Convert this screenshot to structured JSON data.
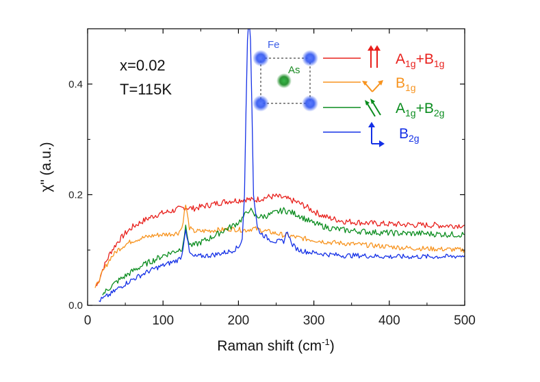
{
  "chart_data": {
    "type": "line",
    "xlabel": "Raman shift (cm",
    "xlabel_sup": "-1",
    "xlabel_end": ")",
    "ylabel": "χ\" (a.u.)",
    "xlim": [
      0,
      500
    ],
    "ylim": [
      0,
      0.5
    ],
    "x_ticks": [
      0,
      100,
      200,
      300,
      400,
      500
    ],
    "y_ticks": [
      0.0,
      0.2,
      0.4
    ],
    "y_tick_labels": [
      "0.0",
      "0.2",
      "0.4"
    ],
    "x_tick_labels": [
      "0",
      "100",
      "200",
      "300",
      "400",
      "500"
    ],
    "annotations": [
      "x=0.02",
      "T=115K"
    ],
    "inset": {
      "fe_label": "Fe",
      "as_label": "As"
    },
    "legend_position": "top-right",
    "series": [
      {
        "name": "A1g+B1g",
        "label_main": "A",
        "label_sub1": "1g",
        "label_mid": "+B",
        "label_sub2": "1g",
        "color": "#e8201c",
        "x": [
          12,
          20,
          30,
          40,
          50,
          60,
          70,
          80,
          90,
          100,
          110,
          120,
          130,
          140,
          150,
          160,
          170,
          180,
          190,
          200,
          210,
          220,
          230,
          240,
          250,
          260,
          270,
          280,
          290,
          300,
          310,
          320,
          330,
          340,
          360,
          380,
          400,
          420,
          440,
          460,
          480,
          500
        ],
        "values": [
          0.035,
          0.065,
          0.095,
          0.115,
          0.13,
          0.142,
          0.15,
          0.157,
          0.163,
          0.167,
          0.17,
          0.174,
          0.177,
          0.175,
          0.178,
          0.181,
          0.184,
          0.187,
          0.189,
          0.19,
          0.192,
          0.19,
          0.193,
          0.196,
          0.197,
          0.194,
          0.19,
          0.185,
          0.178,
          0.17,
          0.163,
          0.158,
          0.155,
          0.152,
          0.15,
          0.148,
          0.147,
          0.146,
          0.145,
          0.145,
          0.144,
          0.145
        ]
      },
      {
        "name": "B1g",
        "label_main": "B",
        "label_sub1": "1g",
        "label_mid": "",
        "label_sub2": "",
        "color": "#f7931e",
        "x": [
          10,
          20,
          30,
          40,
          50,
          60,
          70,
          80,
          90,
          100,
          110,
          120,
          125,
          130,
          135,
          140,
          150,
          160,
          170,
          180,
          190,
          200,
          210,
          220,
          230,
          240,
          250,
          260,
          270,
          280,
          290,
          300,
          310,
          320,
          340,
          360,
          380,
          400,
          420,
          440,
          460,
          480,
          500
        ],
        "values": [
          0.03,
          0.06,
          0.085,
          0.1,
          0.11,
          0.117,
          0.121,
          0.124,
          0.127,
          0.128,
          0.129,
          0.131,
          0.14,
          0.182,
          0.14,
          0.134,
          0.134,
          0.135,
          0.136,
          0.137,
          0.138,
          0.137,
          0.136,
          0.139,
          0.136,
          0.133,
          0.13,
          0.127,
          0.125,
          0.122,
          0.12,
          0.118,
          0.116,
          0.114,
          0.112,
          0.11,
          0.108,
          0.106,
          0.104,
          0.103,
          0.102,
          0.101,
          0.1
        ]
      },
      {
        "name": "A1g+B2g",
        "label_main": "A",
        "label_sub1": "1g",
        "label_mid": "+B",
        "label_sub2": "2g",
        "color": "#0a8c1e",
        "x": [
          20,
          30,
          40,
          50,
          60,
          70,
          80,
          90,
          100,
          110,
          120,
          125,
          130,
          135,
          140,
          150,
          160,
          170,
          180,
          190,
          200,
          205,
          210,
          215,
          220,
          230,
          240,
          250,
          260,
          270,
          280,
          290,
          300,
          320,
          340,
          360,
          380,
          400,
          420,
          440,
          460,
          480,
          500
        ],
        "values": [
          0.02,
          0.033,
          0.044,
          0.053,
          0.062,
          0.07,
          0.077,
          0.083,
          0.09,
          0.095,
          0.1,
          0.103,
          0.14,
          0.11,
          0.108,
          0.114,
          0.12,
          0.127,
          0.135,
          0.142,
          0.15,
          0.157,
          0.165,
          0.175,
          0.163,
          0.16,
          0.163,
          0.168,
          0.172,
          0.168,
          0.163,
          0.155,
          0.148,
          0.14,
          0.136,
          0.134,
          0.132,
          0.131,
          0.13,
          0.13,
          0.129,
          0.128,
          0.128
        ]
      },
      {
        "name": "B2g",
        "label_main": "B",
        "label_sub1": "2g",
        "label_mid": "",
        "label_sub2": "",
        "color": "#1430e6",
        "x": [
          15,
          20,
          30,
          40,
          50,
          60,
          70,
          80,
          90,
          100,
          110,
          120,
          125,
          130,
          135,
          140,
          150,
          160,
          170,
          180,
          190,
          200,
          205,
          208,
          210,
          212,
          214,
          216,
          218,
          220,
          225,
          230,
          240,
          250,
          260,
          265,
          270,
          275,
          280,
          290,
          300,
          320,
          340,
          360,
          380,
          400,
          420,
          440,
          460,
          480,
          500
        ],
        "values": [
          0.008,
          0.012,
          0.02,
          0.03,
          0.039,
          0.047,
          0.054,
          0.061,
          0.067,
          0.072,
          0.077,
          0.082,
          0.09,
          0.14,
          0.095,
          0.088,
          0.089,
          0.09,
          0.092,
          0.095,
          0.098,
          0.105,
          0.12,
          0.2,
          0.35,
          0.48,
          0.52,
          0.48,
          0.35,
          0.2,
          0.14,
          0.13,
          0.12,
          0.115,
          0.116,
          0.135,
          0.112,
          0.105,
          0.1,
          0.097,
          0.095,
          0.092,
          0.09,
          0.09,
          0.089,
          0.088,
          0.088,
          0.088,
          0.088,
          0.088,
          0.09
        ]
      }
    ]
  }
}
